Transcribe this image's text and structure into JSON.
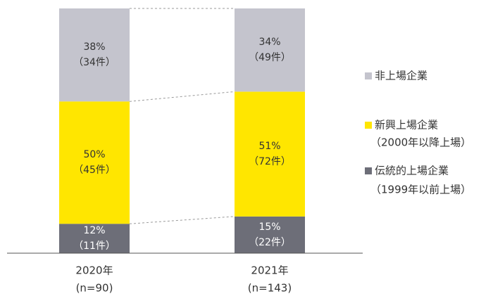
{
  "chart_data": {
    "type": "stacked_bar",
    "categories": [
      [
        "2020年",
        "(n=90)"
      ],
      [
        "2021年",
        "(n=143)"
      ]
    ],
    "ylim": [
      0,
      100
    ],
    "series": [
      {
        "name": "伝統的上場企業",
        "note": "（1999年以前上場）",
        "color": "#6d6e78",
        "label_color": "#ffffff",
        "values": [
          12,
          15
        ],
        "value_labels": [
          [
            "12%",
            "（11件）"
          ],
          [
            "15%",
            "（22件）"
          ]
        ]
      },
      {
        "name": "新興上場企業",
        "note": "（2000年以降上場）",
        "color": "#ffe600",
        "label_color": "#333333",
        "values": [
          50,
          51
        ],
        "value_labels": [
          [
            "50%",
            "（45件）"
          ],
          [
            "51%",
            "（72件）"
          ]
        ]
      },
      {
        "name": "非上場企業",
        "color": "#c4c4cd",
        "label_color": "#333333",
        "values": [
          38,
          34
        ],
        "value_labels": [
          [
            "38%",
            "（34件）"
          ],
          [
            "34%",
            "（49件）"
          ]
        ]
      }
    ]
  }
}
